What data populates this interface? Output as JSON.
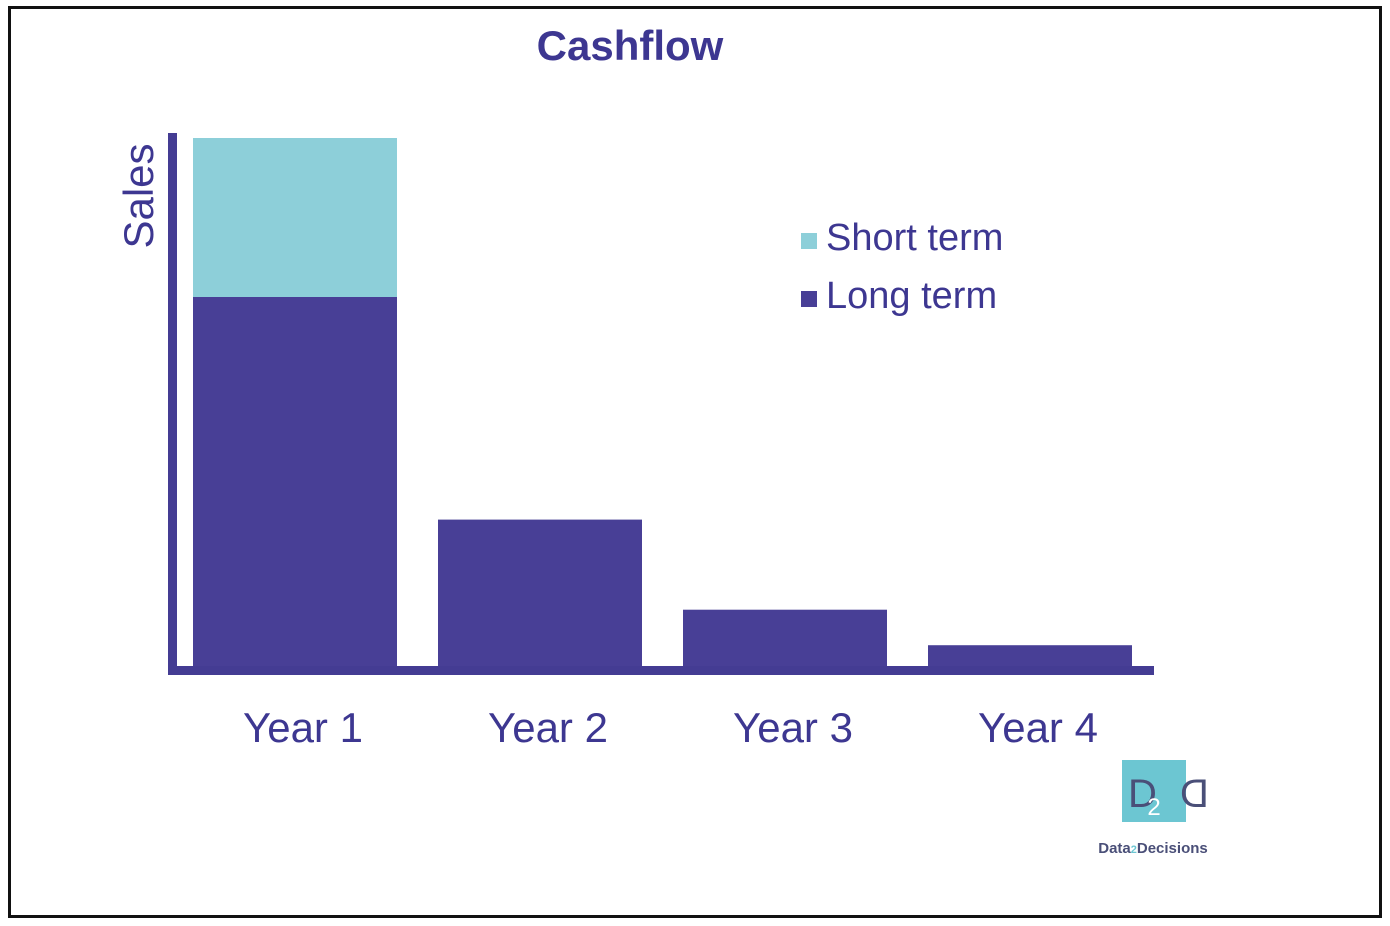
{
  "colors": {
    "long_term": "#483f96",
    "short_term": "#8dcfd9",
    "text": "#3d3791",
    "axis": "#443c93",
    "logo_bg": "#6cc6d2",
    "logo_text": "#4a4f78",
    "frame": "#111111"
  },
  "chart_data": {
    "type": "bar",
    "stacked": true,
    "title": "Cashflow",
    "xlabel": "",
    "ylabel": "Sales",
    "categories": [
      "Year 1",
      "Year 2",
      "Year 3",
      "Year 4"
    ],
    "series": [
      {
        "name": "Long term",
        "values": [
          70,
          28,
          11,
          4.3
        ]
      },
      {
        "name": "Short term",
        "values": [
          30,
          0,
          0,
          0
        ]
      }
    ],
    "ylim": [
      0,
      100
    ],
    "y_ticks_shown": false,
    "grid": false,
    "legend_position": "top-right",
    "legend_order": [
      "Short term",
      "Long term"
    ]
  },
  "logo": {
    "mark_glyph": "D",
    "mark_sub": "2",
    "text_left": "Data",
    "text_mid": "2",
    "text_right": "Decisions"
  }
}
